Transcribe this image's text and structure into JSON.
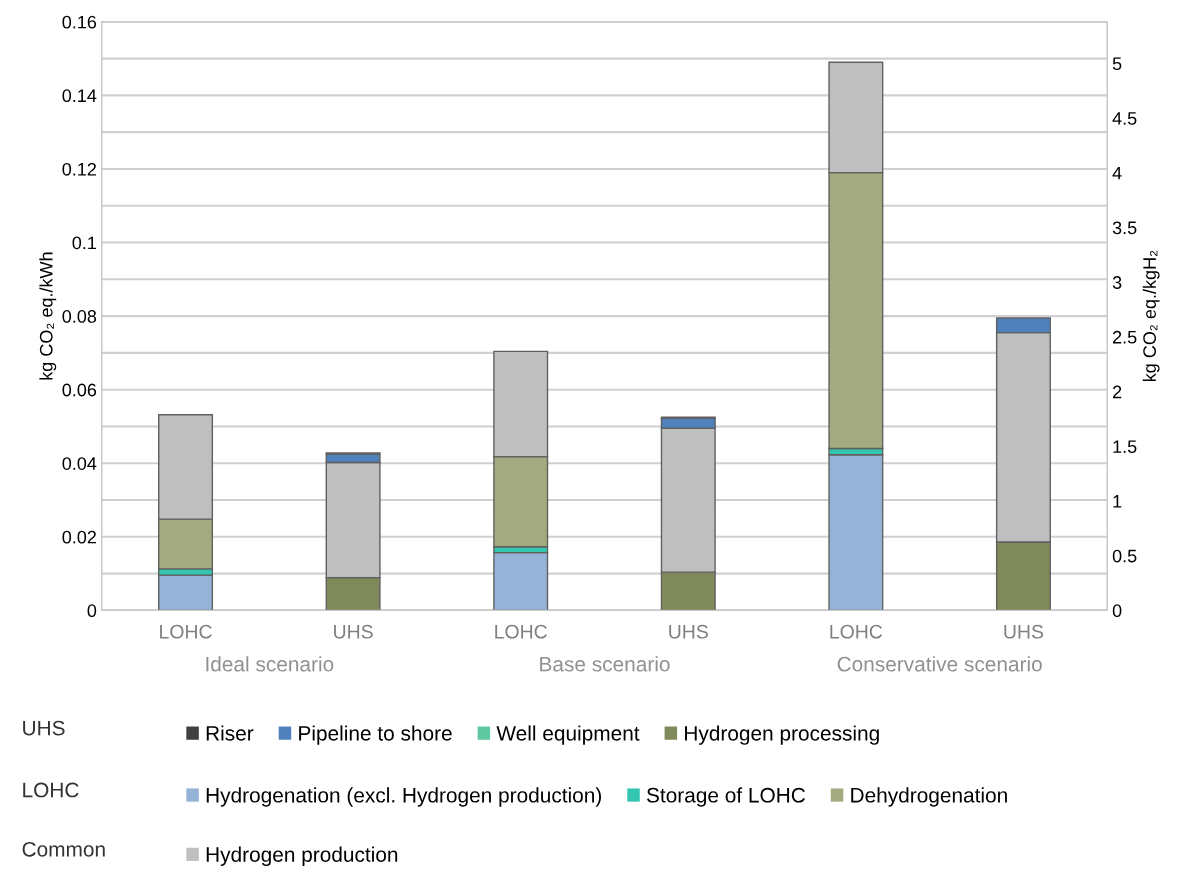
{
  "chart_data": {
    "type": "bar",
    "stacked": true,
    "ylabel": "kg CO₂ eq./kWh",
    "y2label": "kg CO₂ eq./kgH₂",
    "categories": [
      "LOHC",
      "UHS",
      "LOHC",
      "UHS",
      "LOHC",
      "UHS"
    ],
    "series": [
      {
        "name": "Hydrogenation (excl. Hydrogen production)",
        "color": "#95b3d7",
        "values": [
          0.0096,
          0,
          0.0157,
          0,
          0.0423,
          0
        ]
      },
      {
        "name": "Hydrogen processing",
        "color": "#7f8a5a",
        "values": [
          0,
          0.0089,
          0,
          0.0104,
          0,
          0.0186
        ]
      },
      {
        "name": "Storage of LOHC",
        "color": "#33c6b0",
        "values": [
          0.0017,
          0,
          0.0016,
          0,
          0.0017,
          0
        ]
      },
      {
        "name": "Dehydrogenation",
        "color": "#a3aa80",
        "values": [
          0.0135,
          0,
          0.0245,
          0,
          0.075,
          0
        ]
      },
      {
        "name": "Hydrogen production",
        "color": "#bfbfbf",
        "values": [
          0.0284,
          0.0313,
          0.0286,
          0.0391,
          0.03,
          0.0569
        ]
      },
      {
        "name": "Pipeline to shore",
        "color": "#4f81bd",
        "values": [
          0,
          0.0023,
          0,
          0.0027,
          0,
          0.004
        ]
      },
      {
        "name": "Well equipment",
        "color": "#5fc8a0",
        "values": [
          0,
          0,
          0,
          0.0003,
          0,
          0
        ]
      },
      {
        "name": "Riser",
        "color": "#404040",
        "values": [
          0,
          0.0003,
          0,
          0,
          0,
          0
        ]
      }
    ],
    "ylim": [
      0,
      0.16
    ],
    "yticks": [
      0,
      {
        "value": 0.01,
        "label": null
      },
      0.02,
      {
        "value": 0.03,
        "label": null
      },
      0.04,
      {
        "value": 0.05,
        "label": null
      },
      0.06,
      {
        "value": 0.07,
        "label": null
      },
      0.08,
      {
        "value": 0.09,
        "label": null
      },
      0.1,
      {
        "value": 0.11,
        "label": null
      },
      0.12,
      {
        "value": 0.13,
        "label": null
      },
      0.14,
      {
        "value": 0.15,
        "label": null
      },
      0.16
    ],
    "y2lim": [
      0,
      5.38
    ],
    "y2ticks": [
      0,
      0.5,
      1,
      1.5,
      2,
      2.5,
      3,
      3.5,
      4,
      4.5,
      5
    ],
    "grid": "y",
    "legend": "bottom",
    "annotations": [
      "Ideal scenario",
      "Base scenario",
      "Conservative scenario",
      "UHS",
      "LOHC",
      "Common"
    ]
  }
}
